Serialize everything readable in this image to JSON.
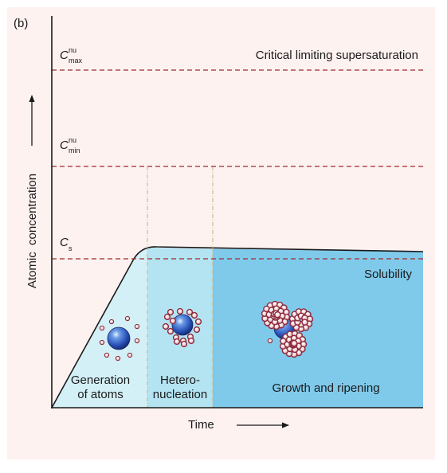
{
  "panel_label": "(b)",
  "y_axis_label": "Atomic  concentration",
  "x_axis_label": "Time",
  "levels": {
    "cmax": {
      "symbol": "C",
      "superscript": "nu",
      "subscript": "max",
      "label": "Critical limiting supersaturation"
    },
    "cmin": {
      "symbol": "C",
      "superscript": "nu",
      "subscript": "min"
    },
    "cs": {
      "symbol": "C",
      "subscript": "s",
      "label": "Solubility"
    }
  },
  "stages": [
    {
      "line1": "Generation",
      "line2": "of atoms"
    },
    {
      "line1": "Hetero-",
      "line2": "nucleation"
    },
    {
      "line1": "Growth and ripening"
    }
  ],
  "colors": {
    "panel_bg": "#fdf2f0",
    "stage1_fill": "#d4f0f7",
    "stage2_fill": "#b4e3f2",
    "stage3_fill": "#7fcaeb",
    "dashed_level": "#a3282b",
    "divider": "#c8b27a",
    "atom_outline": "#8c2a3c",
    "sphere": "#2f62c4"
  }
}
